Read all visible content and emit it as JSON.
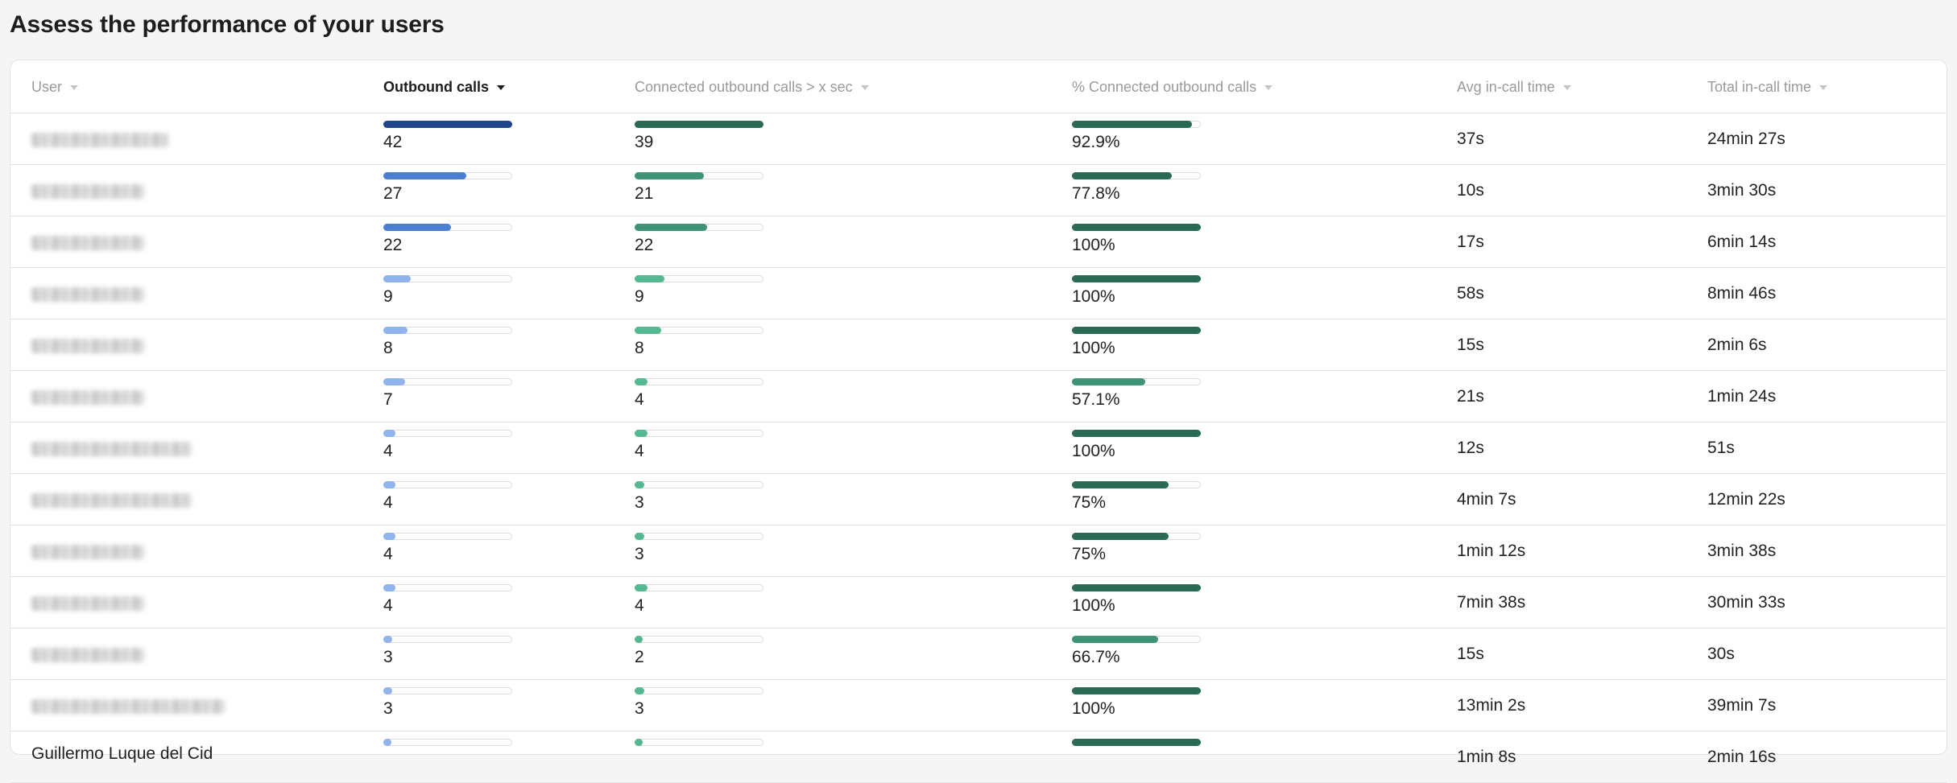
{
  "page_title": "Assess the performance of your users",
  "columns": [
    {
      "key": "user",
      "label": "User",
      "active": false
    },
    {
      "key": "outbound",
      "label": "Outbound calls",
      "active": true
    },
    {
      "key": "connected",
      "label": "Connected outbound calls > x sec",
      "active": false
    },
    {
      "key": "pct",
      "label": "% Connected outbound calls",
      "active": false
    },
    {
      "key": "avg",
      "label": "Avg in-call time",
      "active": false
    },
    {
      "key": "total",
      "label": "Total in-call time",
      "active": false
    }
  ],
  "colors": {
    "outbound_dark": "#22468d",
    "outbound_mid": "#4b7fd4",
    "outbound_light": "#8fb3ea",
    "connected_dark": "#2b6a52",
    "connected_mid": "#3e9474",
    "connected_light": "#55b891",
    "pct_full": "#2b6a52",
    "pct_partial": "#3e9474"
  },
  "max_outbound": 42,
  "max_connected": 39,
  "rows": [
    {
      "user": "",
      "outbound": 42,
      "outbound_label": "42",
      "connected": 39,
      "connected_label": "39",
      "pct": 92.9,
      "pct_label": "92.9%",
      "avg": "37s",
      "total": "24min 27s"
    },
    {
      "user": "",
      "outbound": 27,
      "outbound_label": "27",
      "connected": 21,
      "connected_label": "21",
      "pct": 77.8,
      "pct_label": "77.8%",
      "avg": "10s",
      "total": "3min 30s"
    },
    {
      "user": "",
      "outbound": 22,
      "outbound_label": "22",
      "connected": 22,
      "connected_label": "22",
      "pct": 100,
      "pct_label": "100%",
      "avg": "17s",
      "total": "6min 14s"
    },
    {
      "user": "",
      "outbound": 9,
      "outbound_label": "9",
      "connected": 9,
      "connected_label": "9",
      "pct": 100,
      "pct_label": "100%",
      "avg": "58s",
      "total": "8min 46s"
    },
    {
      "user": "",
      "outbound": 8,
      "outbound_label": "8",
      "connected": 8,
      "connected_label": "8",
      "pct": 100,
      "pct_label": "100%",
      "avg": "15s",
      "total": "2min 6s"
    },
    {
      "user": "",
      "outbound": 7,
      "outbound_label": "7",
      "connected": 4,
      "connected_label": "4",
      "pct": 57.1,
      "pct_label": "57.1%",
      "avg": "21s",
      "total": "1min 24s"
    },
    {
      "user": "",
      "outbound": 4,
      "outbound_label": "4",
      "connected": 4,
      "connected_label": "4",
      "pct": 100,
      "pct_label": "100%",
      "avg": "12s",
      "total": "51s"
    },
    {
      "user": "",
      "outbound": 4,
      "outbound_label": "4",
      "connected": 3,
      "connected_label": "3",
      "pct": 75,
      "pct_label": "75%",
      "avg": "4min 7s",
      "total": "12min 22s"
    },
    {
      "user": "",
      "outbound": 4,
      "outbound_label": "4",
      "connected": 3,
      "connected_label": "3",
      "pct": 75,
      "pct_label": "75%",
      "avg": "1min 12s",
      "total": "3min 38s"
    },
    {
      "user": "",
      "outbound": 4,
      "outbound_label": "4",
      "connected": 4,
      "connected_label": "4",
      "pct": 100,
      "pct_label": "100%",
      "avg": "7min 38s",
      "total": "30min 33s"
    },
    {
      "user": "",
      "outbound": 3,
      "outbound_label": "3",
      "connected": 2,
      "connected_label": "2",
      "pct": 66.7,
      "pct_label": "66.7%",
      "avg": "15s",
      "total": "30s"
    },
    {
      "user": "",
      "outbound": 3,
      "outbound_label": "3",
      "connected": 3,
      "connected_label": "3",
      "pct": 100,
      "pct_label": "100%",
      "avg": "13min 2s",
      "total": "39min 7s"
    },
    {
      "user": "Guillermo Luque del Cid",
      "outbound": 2,
      "outbound_label": "",
      "connected": 2,
      "connected_label": "",
      "pct": 100,
      "pct_label": "",
      "avg": "1min 8s",
      "total": "2min 16s"
    }
  ]
}
